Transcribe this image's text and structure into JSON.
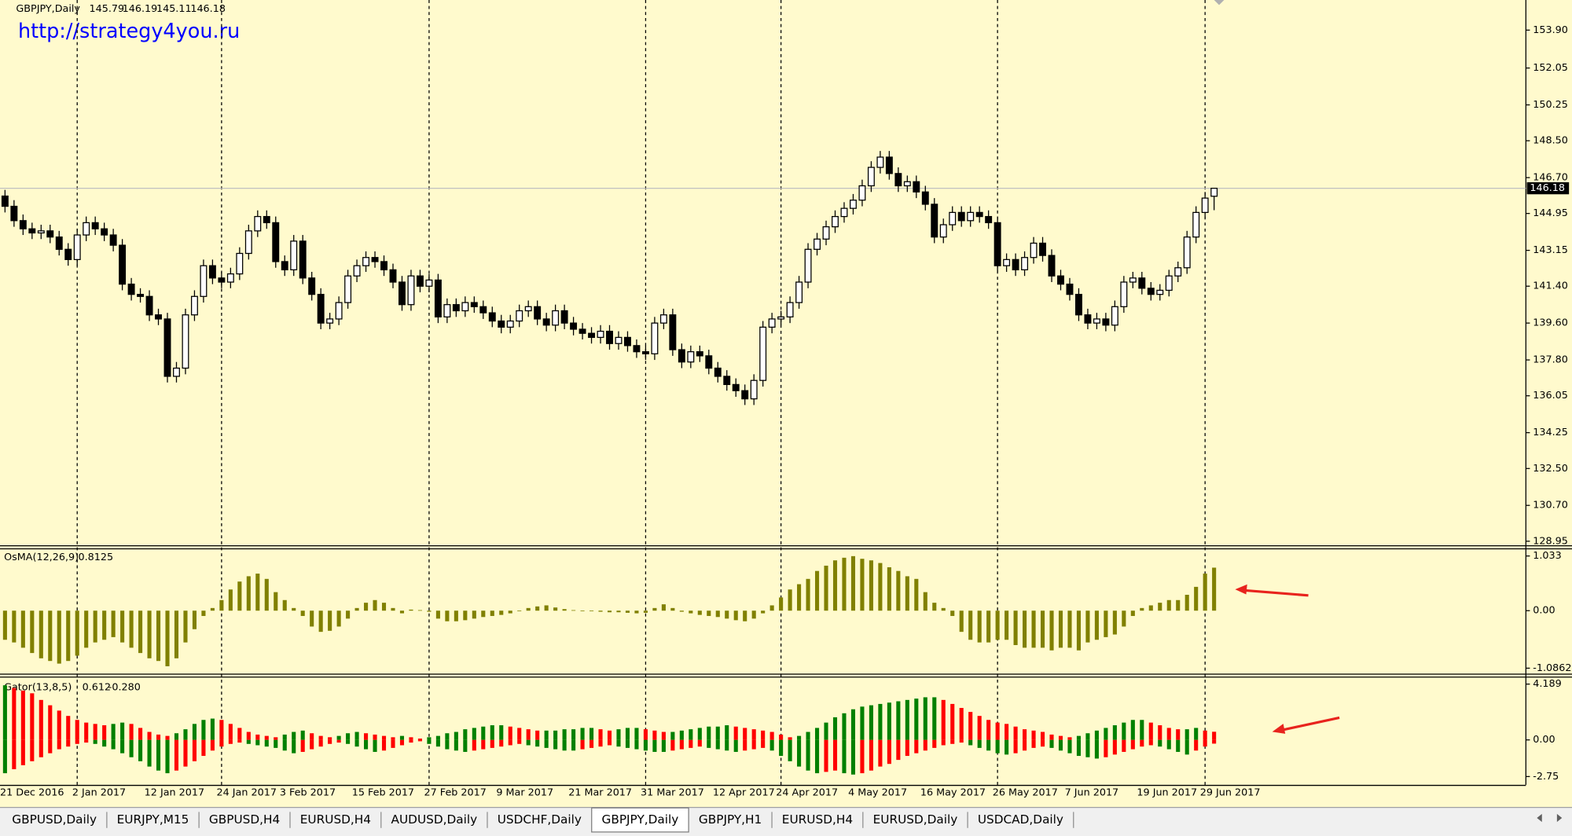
{
  "chart_data": [
    {
      "type": "candlestick",
      "title": "GBPJPY,Daily",
      "watermark": "http://strategy4you.ru",
      "categories": [
        "21 Dec 2016",
        null,
        null,
        null,
        null,
        null,
        null,
        null,
        "2 Jan 2017",
        null,
        null,
        null,
        null,
        null,
        null,
        null,
        "12 Jan 2017",
        null,
        null,
        null,
        null,
        null,
        null,
        null,
        "24 Jan 2017",
        null,
        null,
        null,
        null,
        null,
        null,
        "3 Feb 2017",
        null,
        null,
        null,
        null,
        null,
        null,
        null,
        "15 Feb 2017",
        null,
        null,
        null,
        null,
        null,
        null,
        null,
        "27 Feb 2017",
        null,
        null,
        null,
        null,
        null,
        null,
        null,
        "9 Mar 2017",
        null,
        null,
        null,
        null,
        null,
        null,
        null,
        "21 Mar 2017",
        null,
        null,
        null,
        null,
        null,
        null,
        null,
        "31 Mar 2017",
        null,
        null,
        null,
        null,
        null,
        null,
        null,
        "12 Apr 2017",
        null,
        null,
        null,
        null,
        null,
        null,
        "24 Apr 2017",
        null,
        null,
        null,
        null,
        null,
        null,
        null,
        "4 May 2017",
        null,
        null,
        null,
        null,
        null,
        null,
        null,
        "16 May 2017",
        null,
        null,
        null,
        null,
        null,
        null,
        null,
        "26 May 2017",
        null,
        null,
        null,
        null,
        null,
        null,
        null,
        "7 Jun 2017",
        null,
        null,
        null,
        null,
        null,
        null,
        null,
        "19 Jun 2017",
        null,
        null,
        null,
        null,
        null,
        null,
        "29 Jun 2017",
        null
      ],
      "open": [
        145.8,
        145.3,
        144.6,
        144.2,
        144.0,
        144.1,
        143.8,
        143.2,
        142.7,
        143.9,
        144.5,
        144.2,
        143.9,
        143.4,
        141.5,
        141.0,
        140.9,
        140.0,
        139.8,
        137.0,
        137.4,
        140.0,
        140.9,
        142.4,
        141.8,
        141.6,
        142.0,
        143.0,
        144.1,
        144.8,
        144.5,
        142.6,
        142.2,
        143.6,
        141.8,
        141.0,
        139.6,
        139.8,
        140.6,
        141.9,
        142.4,
        142.8,
        142.6,
        142.2,
        141.6,
        140.5,
        141.9,
        141.4,
        141.7,
        139.9,
        140.5,
        140.2,
        140.6,
        140.4,
        140.1,
        139.7,
        139.4,
        139.7,
        140.2,
        140.4,
        139.8,
        139.5,
        140.2,
        139.6,
        139.3,
        139.1,
        138.9,
        139.2,
        138.6,
        138.9,
        138.5,
        138.2,
        138.1,
        139.6,
        140.0,
        138.3,
        137.7,
        138.2,
        138.0,
        137.4,
        137.0,
        136.6,
        136.3,
        135.9,
        136.8,
        139.4,
        139.8,
        139.9,
        140.6,
        141.6,
        143.2,
        143.7,
        144.3,
        144.8,
        145.2,
        145.6,
        146.3,
        147.2,
        147.7,
        146.9,
        146.3,
        146.5,
        146.0,
        145.4,
        143.8,
        144.4,
        145.0,
        144.6,
        145.0,
        144.8,
        144.5,
        142.4,
        142.7,
        142.2,
        142.8,
        143.5,
        142.9,
        141.9,
        141.5,
        141.0,
        140.0,
        139.6,
        139.8,
        139.5,
        140.4,
        141.6,
        141.8,
        141.3,
        141.0,
        141.2,
        141.9,
        142.3,
        143.8,
        145.0,
        145.79
      ],
      "high": [
        146.1,
        145.6,
        144.9,
        144.5,
        144.4,
        144.4,
        144.1,
        143.5,
        144.2,
        144.8,
        144.8,
        144.5,
        144.2,
        143.7,
        141.8,
        141.3,
        141.2,
        140.3,
        140.1,
        137.7,
        140.3,
        141.2,
        142.7,
        142.7,
        142.1,
        142.3,
        143.3,
        144.4,
        145.1,
        145.1,
        144.8,
        142.9,
        143.9,
        143.9,
        142.1,
        141.3,
        140.1,
        140.9,
        142.2,
        142.7,
        143.1,
        143.1,
        142.9,
        142.5,
        141.9,
        142.2,
        142.2,
        142.0,
        142.0,
        140.8,
        140.8,
        140.9,
        140.9,
        140.7,
        140.4,
        140.0,
        140.0,
        140.5,
        140.7,
        140.7,
        140.1,
        140.5,
        140.5,
        139.9,
        139.6,
        139.4,
        139.5,
        139.5,
        139.2,
        139.2,
        138.8,
        138.5,
        139.9,
        140.3,
        140.3,
        138.6,
        138.5,
        138.5,
        138.3,
        137.7,
        137.3,
        136.9,
        136.6,
        137.1,
        139.7,
        140.1,
        140.2,
        140.9,
        141.9,
        143.5,
        144.0,
        144.6,
        145.1,
        145.5,
        145.9,
        146.6,
        147.5,
        148.0,
        148.0,
        147.2,
        146.8,
        146.8,
        146.3,
        145.7,
        144.7,
        145.3,
        145.3,
        145.3,
        145.3,
        145.1,
        144.8,
        143.0,
        143.0,
        143.1,
        143.8,
        143.8,
        143.2,
        142.2,
        141.8,
        141.3,
        140.3,
        140.1,
        140.1,
        140.7,
        141.9,
        142.1,
        142.1,
        141.6,
        141.5,
        142.2,
        142.6,
        144.1,
        145.3,
        146.0,
        146.19
      ],
      "low": [
        145.0,
        144.3,
        143.9,
        143.7,
        143.7,
        143.5,
        142.9,
        142.4,
        142.4,
        143.6,
        143.9,
        143.6,
        143.1,
        141.2,
        140.7,
        140.6,
        139.7,
        139.5,
        136.7,
        136.7,
        137.1,
        139.7,
        140.6,
        141.5,
        141.3,
        141.3,
        141.7,
        142.7,
        143.8,
        144.2,
        142.3,
        141.9,
        141.9,
        141.5,
        140.7,
        139.3,
        139.3,
        139.5,
        140.3,
        141.6,
        142.1,
        142.3,
        141.9,
        141.3,
        140.2,
        140.2,
        141.1,
        141.1,
        139.6,
        139.6,
        139.9,
        139.9,
        140.1,
        139.8,
        139.4,
        139.1,
        139.1,
        139.4,
        139.9,
        139.5,
        139.2,
        139.2,
        139.3,
        139.0,
        138.8,
        138.6,
        138.6,
        138.3,
        138.3,
        138.2,
        137.9,
        137.8,
        137.8,
        139.3,
        138.0,
        137.4,
        137.4,
        137.7,
        137.1,
        136.7,
        136.3,
        136.0,
        135.6,
        135.6,
        136.5,
        139.1,
        139.5,
        139.6,
        140.3,
        141.3,
        142.9,
        143.4,
        144.0,
        144.5,
        144.9,
        145.3,
        146.0,
        146.9,
        146.6,
        146.0,
        146.0,
        145.7,
        145.1,
        143.5,
        143.5,
        144.1,
        144.3,
        144.3,
        144.5,
        144.2,
        142.1,
        142.1,
        141.9,
        141.9,
        142.5,
        142.6,
        141.6,
        141.2,
        140.7,
        139.7,
        139.3,
        139.3,
        139.2,
        139.2,
        140.1,
        141.3,
        141.0,
        140.7,
        140.7,
        140.9,
        141.6,
        142.0,
        143.5,
        144.7,
        145.11
      ],
      "close": [
        145.3,
        144.6,
        144.2,
        144.0,
        144.1,
        143.8,
        143.2,
        142.7,
        143.9,
        144.5,
        144.2,
        143.9,
        143.4,
        141.5,
        141.0,
        140.9,
        140.0,
        139.8,
        137.0,
        137.4,
        140.0,
        140.9,
        142.4,
        141.8,
        141.6,
        142.0,
        143.0,
        144.1,
        144.8,
        144.5,
        142.6,
        142.2,
        143.6,
        141.8,
        141.0,
        139.6,
        139.8,
        140.6,
        141.9,
        142.4,
        142.8,
        142.6,
        142.2,
        141.6,
        140.5,
        141.9,
        141.4,
        141.7,
        139.9,
        140.5,
        140.2,
        140.6,
        140.4,
        140.1,
        139.7,
        139.4,
        139.7,
        140.2,
        140.4,
        139.8,
        139.5,
        140.2,
        139.6,
        139.3,
        139.1,
        138.9,
        139.2,
        138.6,
        138.9,
        138.5,
        138.2,
        138.1,
        139.6,
        140.0,
        138.3,
        137.7,
        138.2,
        138.0,
        137.4,
        137.0,
        136.6,
        136.3,
        135.9,
        136.8,
        139.4,
        139.8,
        139.9,
        140.6,
        141.6,
        143.2,
        143.7,
        144.3,
        144.8,
        145.2,
        145.6,
        146.3,
        147.2,
        147.7,
        146.9,
        146.3,
        146.5,
        146.0,
        145.4,
        143.8,
        144.4,
        145.0,
        144.6,
        145.0,
        144.8,
        144.5,
        142.4,
        142.7,
        142.2,
        142.8,
        143.5,
        142.9,
        141.9,
        141.5,
        141.0,
        140.0,
        139.6,
        139.8,
        139.5,
        140.4,
        141.6,
        141.8,
        141.3,
        141.0,
        141.2,
        141.9,
        142.3,
        143.8,
        145.0,
        145.7,
        146.18
      ],
      "bull_color": "#ffffff",
      "bear_color": "#000000",
      "wick_color": "#000000",
      "ylim": [
        128.8,
        155.37
      ],
      "yticks": [
        {
          "value": 153.9,
          "label": "153.90"
        },
        152.05,
        150.25,
        {
          "value": 148.5,
          "label": "148.50"
        },
        {
          "value": 146.7,
          "label": "146.70"
        },
        144.95,
        143.15,
        {
          "value": 141.4,
          "label": "141.40"
        },
        {
          "value": 139.6,
          "label": "139.60"
        },
        {
          "value": 137.8,
          "label": "137.80"
        },
        136.05,
        134.25,
        {
          "value": 132.5,
          "label": "132.50"
        },
        {
          "value": 130.7,
          "label": "130.70"
        },
        128.95
      ],
      "grid": false,
      "price_line": true
    },
    {
      "type": "bar",
      "title": "OsMA(12,26,9)",
      "color": "#808000",
      "values": [
        -0.55,
        -0.6,
        -0.7,
        -0.8,
        -0.9,
        -0.95,
        -1.0,
        -0.95,
        -0.85,
        -0.7,
        -0.6,
        -0.55,
        -0.5,
        -0.6,
        -0.7,
        -0.8,
        -0.9,
        -0.95,
        -1.05,
        -0.9,
        -0.6,
        -0.35,
        -0.1,
        0.05,
        0.2,
        0.4,
        0.55,
        0.65,
        0.7,
        0.6,
        0.35,
        0.2,
        0.05,
        -0.1,
        -0.3,
        -0.4,
        -0.38,
        -0.3,
        -0.15,
        0.05,
        0.15,
        0.2,
        0.15,
        0.05,
        -0.05,
        0.02,
        0.01,
        -0.02,
        -0.15,
        -0.2,
        -0.2,
        -0.18,
        -0.15,
        -0.12,
        -0.1,
        -0.08,
        -0.05,
        0.0,
        0.05,
        0.08,
        0.1,
        0.06,
        0.03,
        0.01,
        0.0,
        -0.01,
        -0.02,
        -0.03,
        -0.03,
        -0.04,
        -0.05,
        -0.04,
        0.05,
        0.12,
        0.05,
        -0.02,
        -0.05,
        -0.08,
        -0.1,
        -0.12,
        -0.15,
        -0.18,
        -0.2,
        -0.15,
        -0.05,
        0.1,
        0.25,
        0.4,
        0.5,
        0.6,
        0.75,
        0.85,
        0.95,
        1.0,
        1.03,
        0.98,
        0.95,
        0.9,
        0.82,
        0.75,
        0.65,
        0.6,
        0.35,
        0.15,
        0.05,
        -0.1,
        -0.4,
        -0.55,
        -0.6,
        -0.6,
        -0.55,
        -0.55,
        -0.65,
        -0.7,
        -0.7,
        -0.7,
        -0.75,
        -0.7,
        -0.7,
        -0.75,
        -0.6,
        -0.55,
        -0.5,
        -0.45,
        -0.3,
        -0.1,
        0.05,
        0.1,
        0.15,
        0.2,
        0.2,
        0.3,
        0.45,
        0.7,
        0.8125
      ],
      "ylim": [
        -1.17,
        1.14
      ],
      "yticks": [
        1.033,
        {
          "value": 0,
          "label": "0.00"
        },
        -1.0862
      ]
    },
    {
      "type": "gator",
      "title": "Gator(13,8,5)",
      "up_color": "#008000",
      "down_color": "#ff0000",
      "upper": [
        4.1,
        3.9,
        3.7,
        3.5,
        3.0,
        2.6,
        2.2,
        1.8,
        1.5,
        1.3,
        1.2,
        1.1,
        1.2,
        1.3,
        1.2,
        0.9,
        0.6,
        0.4,
        0.3,
        0.5,
        0.8,
        1.2,
        1.5,
        1.6,
        1.5,
        1.2,
        0.9,
        0.6,
        0.4,
        0.3,
        0.2,
        0.4,
        0.6,
        0.7,
        0.5,
        0.3,
        0.2,
        0.3,
        0.5,
        0.6,
        0.5,
        0.4,
        0.3,
        0.2,
        0.3,
        0.2,
        0.1,
        0.2,
        0.3,
        0.5,
        0.6,
        0.8,
        0.9,
        1.0,
        1.1,
        1.1,
        1.0,
        0.9,
        0.8,
        0.7,
        0.7,
        0.7,
        0.8,
        0.8,
        0.9,
        0.9,
        0.8,
        0.7,
        0.8,
        0.9,
        0.9,
        0.8,
        0.7,
        0.6,
        0.6,
        0.7,
        0.8,
        0.9,
        1.0,
        1.0,
        1.1,
        1.0,
        0.9,
        0.8,
        0.7,
        0.6,
        0.4,
        0.2,
        0.3,
        0.6,
        0.9,
        1.3,
        1.7,
        2.0,
        2.3,
        2.5,
        2.6,
        2.7,
        2.8,
        2.9,
        3.0,
        3.1,
        3.2,
        3.2,
        3.0,
        2.7,
        2.4,
        2.1,
        1.8,
        1.5,
        1.3,
        1.2,
        1.0,
        0.8,
        0.7,
        0.6,
        0.4,
        0.3,
        0.2,
        0.3,
        0.5,
        0.7,
        0.9,
        1.1,
        1.3,
        1.5,
        1.5,
        1.3,
        1.1,
        0.9,
        0.8,
        0.8,
        0.9,
        0.7,
        0.612
      ],
      "lower": [
        -2.5,
        -2.2,
        -1.9,
        -1.6,
        -1.3,
        -1.0,
        -0.7,
        -0.5,
        -0.3,
        -0.2,
        -0.3,
        -0.5,
        -0.7,
        -1.0,
        -1.3,
        -1.6,
        -2.0,
        -2.3,
        -2.5,
        -2.3,
        -2.0,
        -1.6,
        -1.2,
        -0.8,
        -0.5,
        -0.3,
        -0.2,
        -0.3,
        -0.4,
        -0.5,
        -0.6,
        -0.8,
        -1.0,
        -0.9,
        -0.7,
        -0.5,
        -0.3,
        -0.2,
        -0.3,
        -0.5,
        -0.7,
        -0.9,
        -0.8,
        -0.6,
        -0.4,
        -0.2,
        -0.1,
        -0.3,
        -0.5,
        -0.7,
        -0.8,
        -0.9,
        -0.8,
        -0.7,
        -0.6,
        -0.5,
        -0.4,
        -0.3,
        -0.4,
        -0.5,
        -0.6,
        -0.7,
        -0.8,
        -0.8,
        -0.7,
        -0.6,
        -0.5,
        -0.4,
        -0.5,
        -0.6,
        -0.7,
        -0.8,
        -0.9,
        -0.9,
        -0.8,
        -0.7,
        -0.6,
        -0.5,
        -0.6,
        -0.7,
        -0.8,
        -0.9,
        -0.8,
        -0.7,
        -0.6,
        -0.8,
        -1.2,
        -1.6,
        -2.0,
        -2.3,
        -2.5,
        -2.4,
        -2.3,
        -2.5,
        -2.6,
        -2.5,
        -2.3,
        -2.0,
        -1.8,
        -1.5,
        -1.2,
        -1.0,
        -0.8,
        -0.6,
        -0.4,
        -0.3,
        -0.2,
        -0.4,
        -0.6,
        -0.8,
        -1.0,
        -1.1,
        -1.0,
        -0.8,
        -0.6,
        -0.5,
        -0.6,
        -0.8,
        -1.0,
        -1.2,
        -1.3,
        -1.4,
        -1.3,
        -1.1,
        -0.9,
        -0.7,
        -0.5,
        -0.4,
        -0.5,
        -0.7,
        -0.9,
        -1.1,
        -0.8,
        -0.5,
        -0.28
      ],
      "lower_value_labels": [
        null,
        null,
        null,
        null,
        null,
        null,
        null,
        null,
        null,
        null,
        null,
        null,
        null,
        null,
        null,
        null,
        null,
        null,
        null,
        null,
        null,
        null,
        null,
        null,
        null,
        null,
        null,
        null,
        null,
        null,
        null,
        null,
        null,
        null,
        null,
        null,
        null,
        null,
        null,
        null,
        null,
        null,
        null,
        null,
        null,
        null,
        null,
        null,
        null,
        null,
        null,
        null,
        null,
        null,
        null,
        null,
        null,
        null,
        null,
        null,
        null,
        null,
        null,
        null,
        null,
        null,
        null,
        null,
        null,
        null,
        null,
        null,
        null,
        null,
        null,
        null,
        null,
        null,
        null,
        null,
        null,
        null,
        null,
        null,
        null,
        null,
        null,
        null,
        null,
        null,
        null,
        null,
        null,
        null,
        null,
        null,
        null,
        null,
        null,
        null,
        null,
        null,
        null,
        null,
        null,
        null,
        null,
        null,
        null,
        null,
        null,
        null,
        null,
        null,
        null,
        null,
        null,
        null,
        null,
        null,
        null,
        null,
        null,
        null,
        null,
        null,
        null,
        null,
        null,
        null,
        null,
        null,
        null,
        null,
        "-0.280"
      ],
      "ylim": [
        -3.3,
        4.6
      ],
      "yticks": [
        4.189,
        {
          "value": 0,
          "label": "0.00"
        },
        -2.75
      ]
    }
  ],
  "tabs": {
    "items": [
      "GBPUSD,Daily",
      "EURJPY,M15",
      "GBPUSD,H4",
      "EURUSD,H4",
      "AUDUSD,Daily",
      "USDCHF,Daily",
      "GBPJPY,Daily",
      "GBPJPY,H1",
      "EURUSD,H4",
      "EURUSD,Daily",
      "USDCAD,Daily"
    ],
    "active": 6
  }
}
